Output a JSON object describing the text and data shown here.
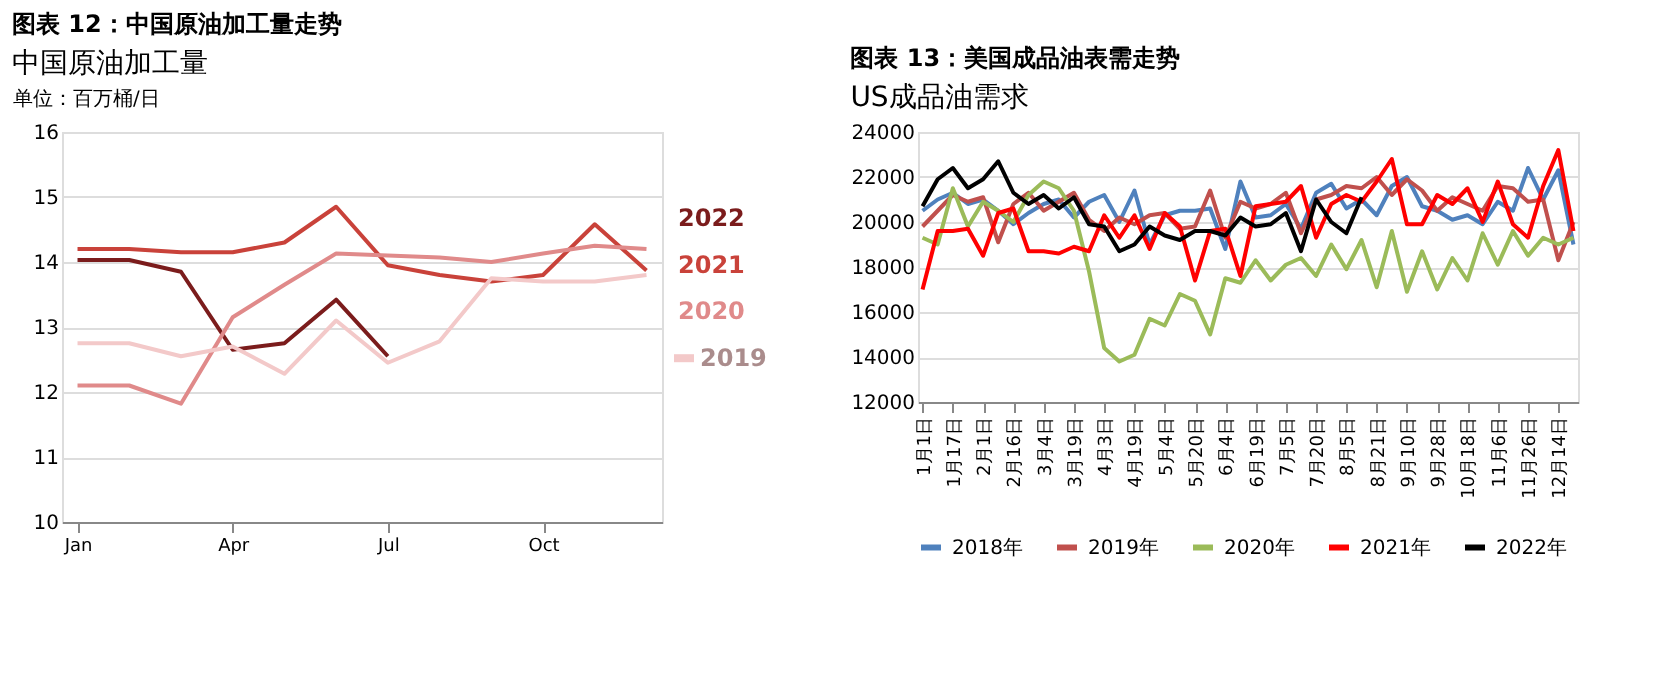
{
  "chart_data": [
    {
      "type": "line",
      "title": "图表 12：中国原油加工量走势",
      "subtitle": "中国原油加工量",
      "ylabel": "单位：百万桶/日",
      "categories": [
        "Jan",
        null,
        null,
        "Apr",
        null,
        null,
        "Jul",
        null,
        null,
        "Oct",
        null,
        null
      ],
      "series": [
        {
          "name": "2022",
          "color": "#7b1c1c",
          "values": [
            14.03,
            14.03,
            13.85,
            12.65,
            12.75,
            13.42,
            12.55,
            null,
            null,
            null,
            null,
            null
          ]
        },
        {
          "name": "2021",
          "color": "#c9423a",
          "values": [
            14.2,
            14.2,
            14.15,
            14.15,
            14.3,
            14.85,
            13.95,
            13.8,
            13.7,
            13.8,
            14.58,
            13.87
          ]
        },
        {
          "name": "2020",
          "color": "#e08a8a",
          "values": [
            12.1,
            12.1,
            11.82,
            13.15,
            13.65,
            14.13,
            14.1,
            14.07,
            14.0,
            14.13,
            14.25,
            14.2
          ]
        },
        {
          "name": "2019",
          "color": "#f3c9c9",
          "values": [
            12.75,
            12.75,
            12.55,
            12.7,
            12.28,
            13.1,
            12.45,
            12.78,
            13.75,
            13.7,
            13.7,
            13.8
          ]
        }
      ],
      "ylim": [
        10,
        16
      ],
      "yticks": [
        10,
        11,
        12,
        13,
        14,
        15,
        16
      ],
      "grid": "y",
      "legend": "right"
    },
    {
      "type": "line",
      "title": "图表 13：美国成品油表需走势",
      "subtitle": "US成品油需求",
      "categories": [
        "1月1日",
        null,
        "1月17日",
        null,
        "2月1日",
        null,
        "2月16日",
        null,
        "3月4日",
        null,
        "3月19日",
        null,
        "4月3日",
        null,
        "4月19日",
        null,
        "5月4日",
        null,
        "5月20日",
        null,
        "6月4日",
        null,
        "6月19日",
        null,
        "7月5日",
        null,
        "7月20日",
        null,
        "8月5日",
        null,
        "8月21日",
        null,
        "9月10日",
        null,
        "9月28日",
        null,
        "10月18日",
        null,
        "11月6日",
        null,
        "11月26日",
        null,
        "12月14日",
        null
      ],
      "series": [
        {
          "name": "2018年",
          "color": "#4f81bd",
          "values": [
            20500,
            21000,
            21300,
            20800,
            21000,
            20500,
            19900,
            20400,
            20800,
            21000,
            20200,
            20900,
            21200,
            20000,
            21400,
            19000,
            20300,
            20500,
            20500,
            20600,
            18800,
            21800,
            20200,
            20300,
            20800,
            19700,
            21300,
            21700,
            20600,
            21000,
            20300,
            21600,
            22000,
            20700,
            20500,
            20100,
            20300,
            19900,
            20900,
            20500,
            22400,
            21000,
            22300,
            19000
          ]
        },
        {
          "name": "2019年",
          "color": "#c0504d",
          "values": [
            19800,
            20500,
            21200,
            20900,
            21100,
            19100,
            20800,
            21300,
            20500,
            20900,
            21300,
            20100,
            19600,
            20200,
            19900,
            20300,
            20400,
            19700,
            19800,
            21400,
            19300,
            20900,
            20600,
            20800,
            21300,
            19500,
            21000,
            21200,
            21600,
            21500,
            22000,
            21200,
            21900,
            21400,
            20500,
            21100,
            20800,
            20500,
            21600,
            21500,
            20900,
            21000,
            18300,
            20000
          ]
        },
        {
          "name": "2020年",
          "color": "#9bbb59",
          "values": [
            19300,
            19000,
            21500,
            19800,
            20900,
            20500,
            20000,
            21200,
            21800,
            21500,
            20500,
            17800,
            14400,
            13800,
            14100,
            15700,
            15400,
            16800,
            16500,
            15000,
            17500,
            17300,
            18300,
            17400,
            18100,
            18400,
            17600,
            19000,
            17900,
            19200,
            17100,
            19600,
            16900,
            18700,
            17000,
            18400,
            17400,
            19500,
            18100,
            19600,
            18500,
            19300,
            19000,
            19300
          ]
        },
        {
          "name": "2021年",
          "color": "#ff0000",
          "values": [
            17000,
            19600,
            19600,
            19700,
            18500,
            20400,
            20600,
            18700,
            18700,
            18600,
            18900,
            18700,
            20300,
            19300,
            20300,
            18800,
            20400,
            19800,
            17400,
            19600,
            19700,
            17600,
            20700,
            20800,
            20900,
            21600,
            19300,
            20800,
            21200,
            20900,
            21800,
            22800,
            19900,
            19900,
            21200,
            20800,
            21500,
            20000,
            21800,
            19900,
            19300,
            21600,
            23200,
            19600
          ]
        },
        {
          "name": "2022年",
          "color": "#000000",
          "values": [
            20700,
            21900,
            22400,
            21500,
            21900,
            22700,
            21300,
            20800,
            21200,
            20600,
            21100,
            19900,
            19800,
            18700,
            19000,
            19800,
            19400,
            19200,
            19600,
            19600,
            19400,
            20200,
            19800,
            19900,
            20400,
            18700,
            21000,
            20000,
            19500,
            21100,
            null,
            null,
            null,
            null,
            null,
            null,
            null,
            null,
            null,
            null,
            null,
            null,
            null,
            null
          ]
        }
      ],
      "ylim": [
        12000,
        24000
      ],
      "yticks": [
        12000,
        14000,
        16000,
        18000,
        20000,
        22000,
        24000
      ],
      "grid": "y",
      "legend": "bottom"
    }
  ]
}
